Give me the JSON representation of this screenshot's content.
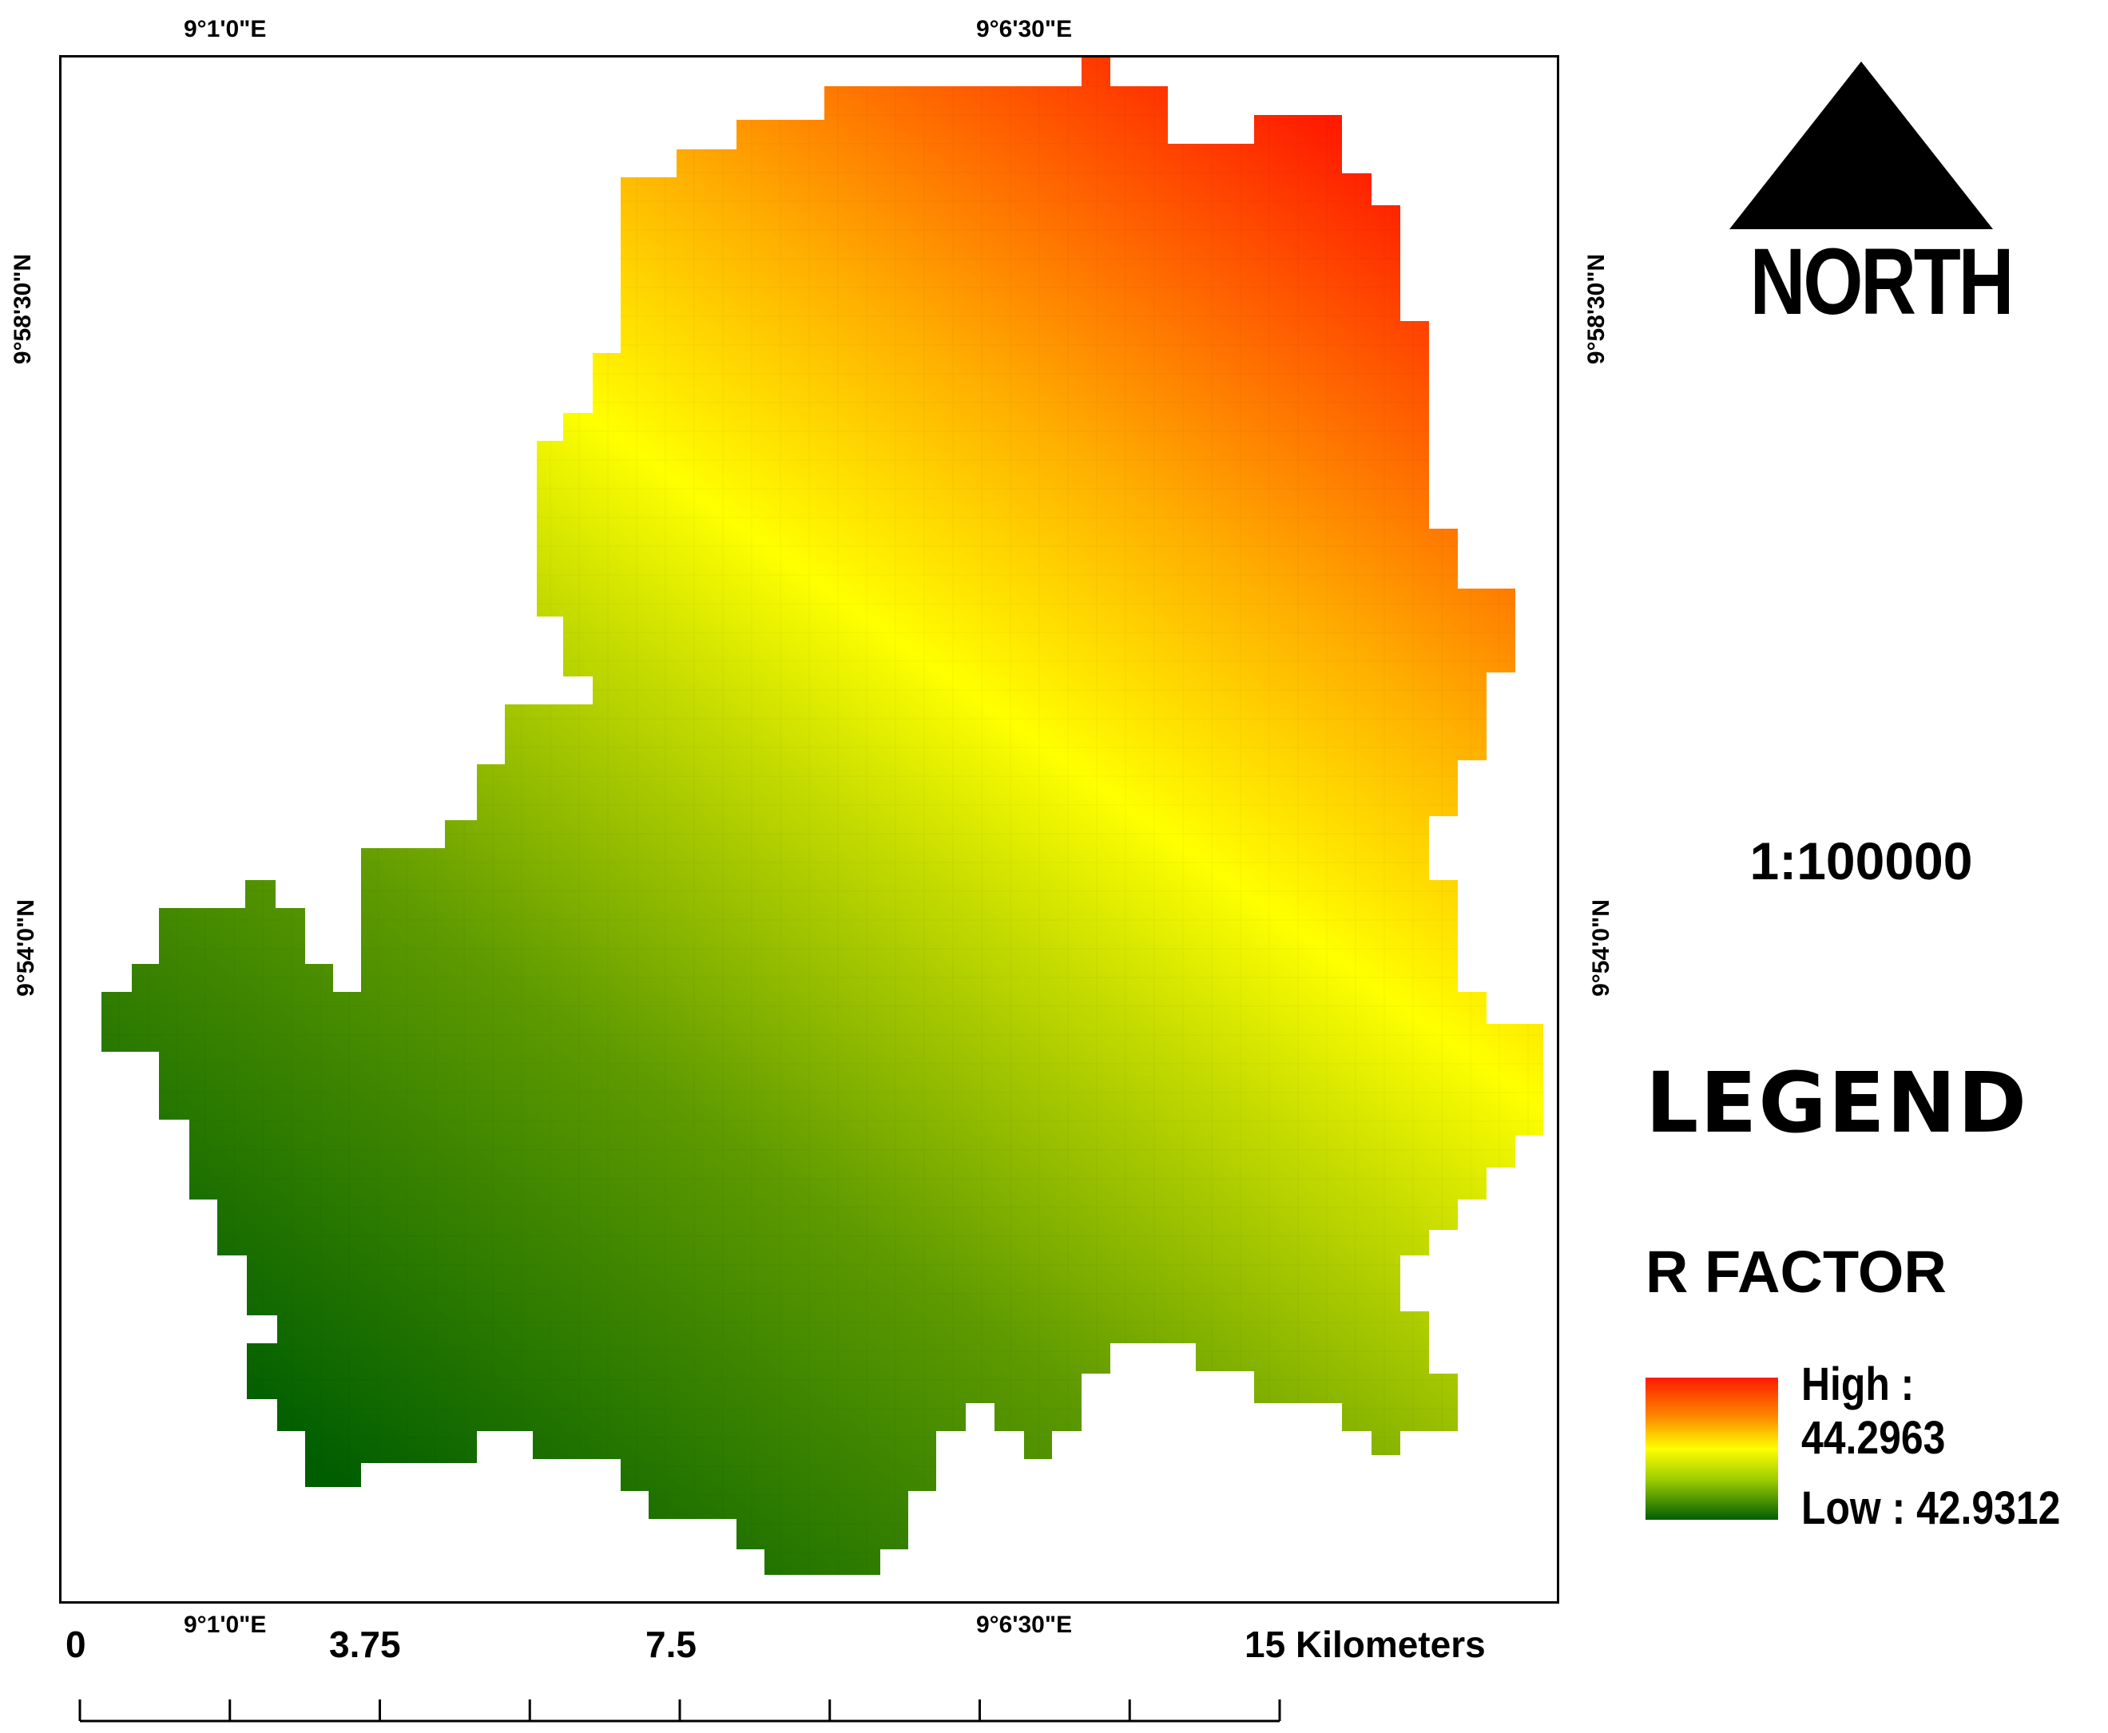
{
  "map": {
    "title": "R FACTOR",
    "coords": {
      "top_left": "9°1'0\"E",
      "top_right": "9°6'30\"E",
      "bottom_left": "9°1'0\"E",
      "bottom_right": "9°6'30\"E",
      "left_upper": "9°58'30\"N",
      "left_lower": "9°54'0\"N",
      "right_upper": "9°58'30\"N",
      "right_lower": "9°54'0\"N"
    },
    "colors": {
      "high": "#ff1a00",
      "mid_high": "#ff8c00",
      "mid": "#ffff00",
      "mid_low": "#9ccc00",
      "low": "#005e00"
    }
  },
  "north_arrow": {
    "label": "NORTH",
    "icon": "north-arrow-icon"
  },
  "scale_ratio": "1:100000",
  "legend": {
    "title": "LEGEND",
    "subtitle": "R FACTOR",
    "high_label": "High : 44.2963",
    "low_label": "Low : 42.9312"
  },
  "scale_bar": {
    "labels": [
      "0",
      "3.75",
      "7.5",
      "15 Kilometers"
    ],
    "max_km": 15,
    "tick_count": 9
  }
}
